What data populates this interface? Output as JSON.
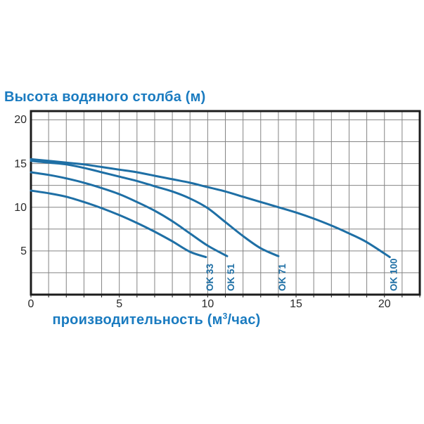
{
  "chart": {
    "title": "Высота водяного столба (м)",
    "xaxis_title": {
      "prefix": "производительность (м",
      "sup": "3",
      "suffix": "/час)"
    },
    "colors": {
      "title": "#1a7bc0",
      "curve": "#1e6fa5",
      "curve_label": "#1e6fa5",
      "grid": "#848484",
      "frame": "#1c1c1c",
      "tick_text": "#2a2a2a",
      "background": "#ffffff"
    }
  },
  "chart_data": {
    "type": "line",
    "title": "Высота водяного столба (м)",
    "xlabel": "производительность (м3/час)",
    "ylabel": "Высота водяного столба (м)",
    "xlim": [
      0,
      22
    ],
    "ylim": [
      0,
      21
    ],
    "grid": true,
    "x_grid_step": 1,
    "y_grid_step": 2.5,
    "x_ticks": [
      0,
      5,
      10,
      15,
      20
    ],
    "y_ticks": [
      5,
      10,
      15,
      20
    ],
    "legend_position": "labels rotated at curve ends",
    "series": [
      {
        "name": "OK 33",
        "points": [
          [
            0,
            11.9
          ],
          [
            1,
            11.6
          ],
          [
            2,
            11.2
          ],
          [
            3,
            10.6
          ],
          [
            4,
            9.9
          ],
          [
            5,
            9.1
          ],
          [
            6,
            8.2
          ],
          [
            7,
            7.2
          ],
          [
            8,
            6.1
          ],
          [
            9,
            4.9
          ],
          [
            9.9,
            4.3
          ]
        ]
      },
      {
        "name": "OK 51",
        "points": [
          [
            0,
            14.0
          ],
          [
            1,
            13.7
          ],
          [
            2,
            13.3
          ],
          [
            3,
            12.8
          ],
          [
            4,
            12.2
          ],
          [
            5,
            11.5
          ],
          [
            6,
            10.6
          ],
          [
            7,
            9.6
          ],
          [
            8,
            8.4
          ],
          [
            9,
            7.0
          ],
          [
            10,
            5.6
          ],
          [
            11.1,
            4.4
          ]
        ]
      },
      {
        "name": "OK 71",
        "points": [
          [
            0,
            15.3
          ],
          [
            1,
            15.1
          ],
          [
            2,
            14.9
          ],
          [
            3,
            14.5
          ],
          [
            4,
            14.0
          ],
          [
            5,
            13.5
          ],
          [
            6,
            13.0
          ],
          [
            7,
            12.4
          ],
          [
            8,
            11.8
          ],
          [
            9,
            11.0
          ],
          [
            10,
            9.9
          ],
          [
            11,
            8.3
          ],
          [
            12,
            6.7
          ],
          [
            13,
            5.3
          ],
          [
            14,
            4.4
          ]
        ]
      },
      {
        "name": "OK 100",
        "points": [
          [
            0,
            15.5
          ],
          [
            1,
            15.3
          ],
          [
            2,
            15.1
          ],
          [
            3,
            14.9
          ],
          [
            4,
            14.6
          ],
          [
            5,
            14.3
          ],
          [
            6,
            14.0
          ],
          [
            7,
            13.6
          ],
          [
            8,
            13.2
          ],
          [
            9,
            12.8
          ],
          [
            10,
            12.3
          ],
          [
            11,
            11.8
          ],
          [
            12,
            11.2
          ],
          [
            13,
            10.6
          ],
          [
            14,
            10.0
          ],
          [
            15,
            9.4
          ],
          [
            16,
            8.7
          ],
          [
            17,
            7.9
          ],
          [
            18,
            7.0
          ],
          [
            19,
            6.0
          ],
          [
            20.3,
            4.3
          ]
        ]
      }
    ]
  }
}
